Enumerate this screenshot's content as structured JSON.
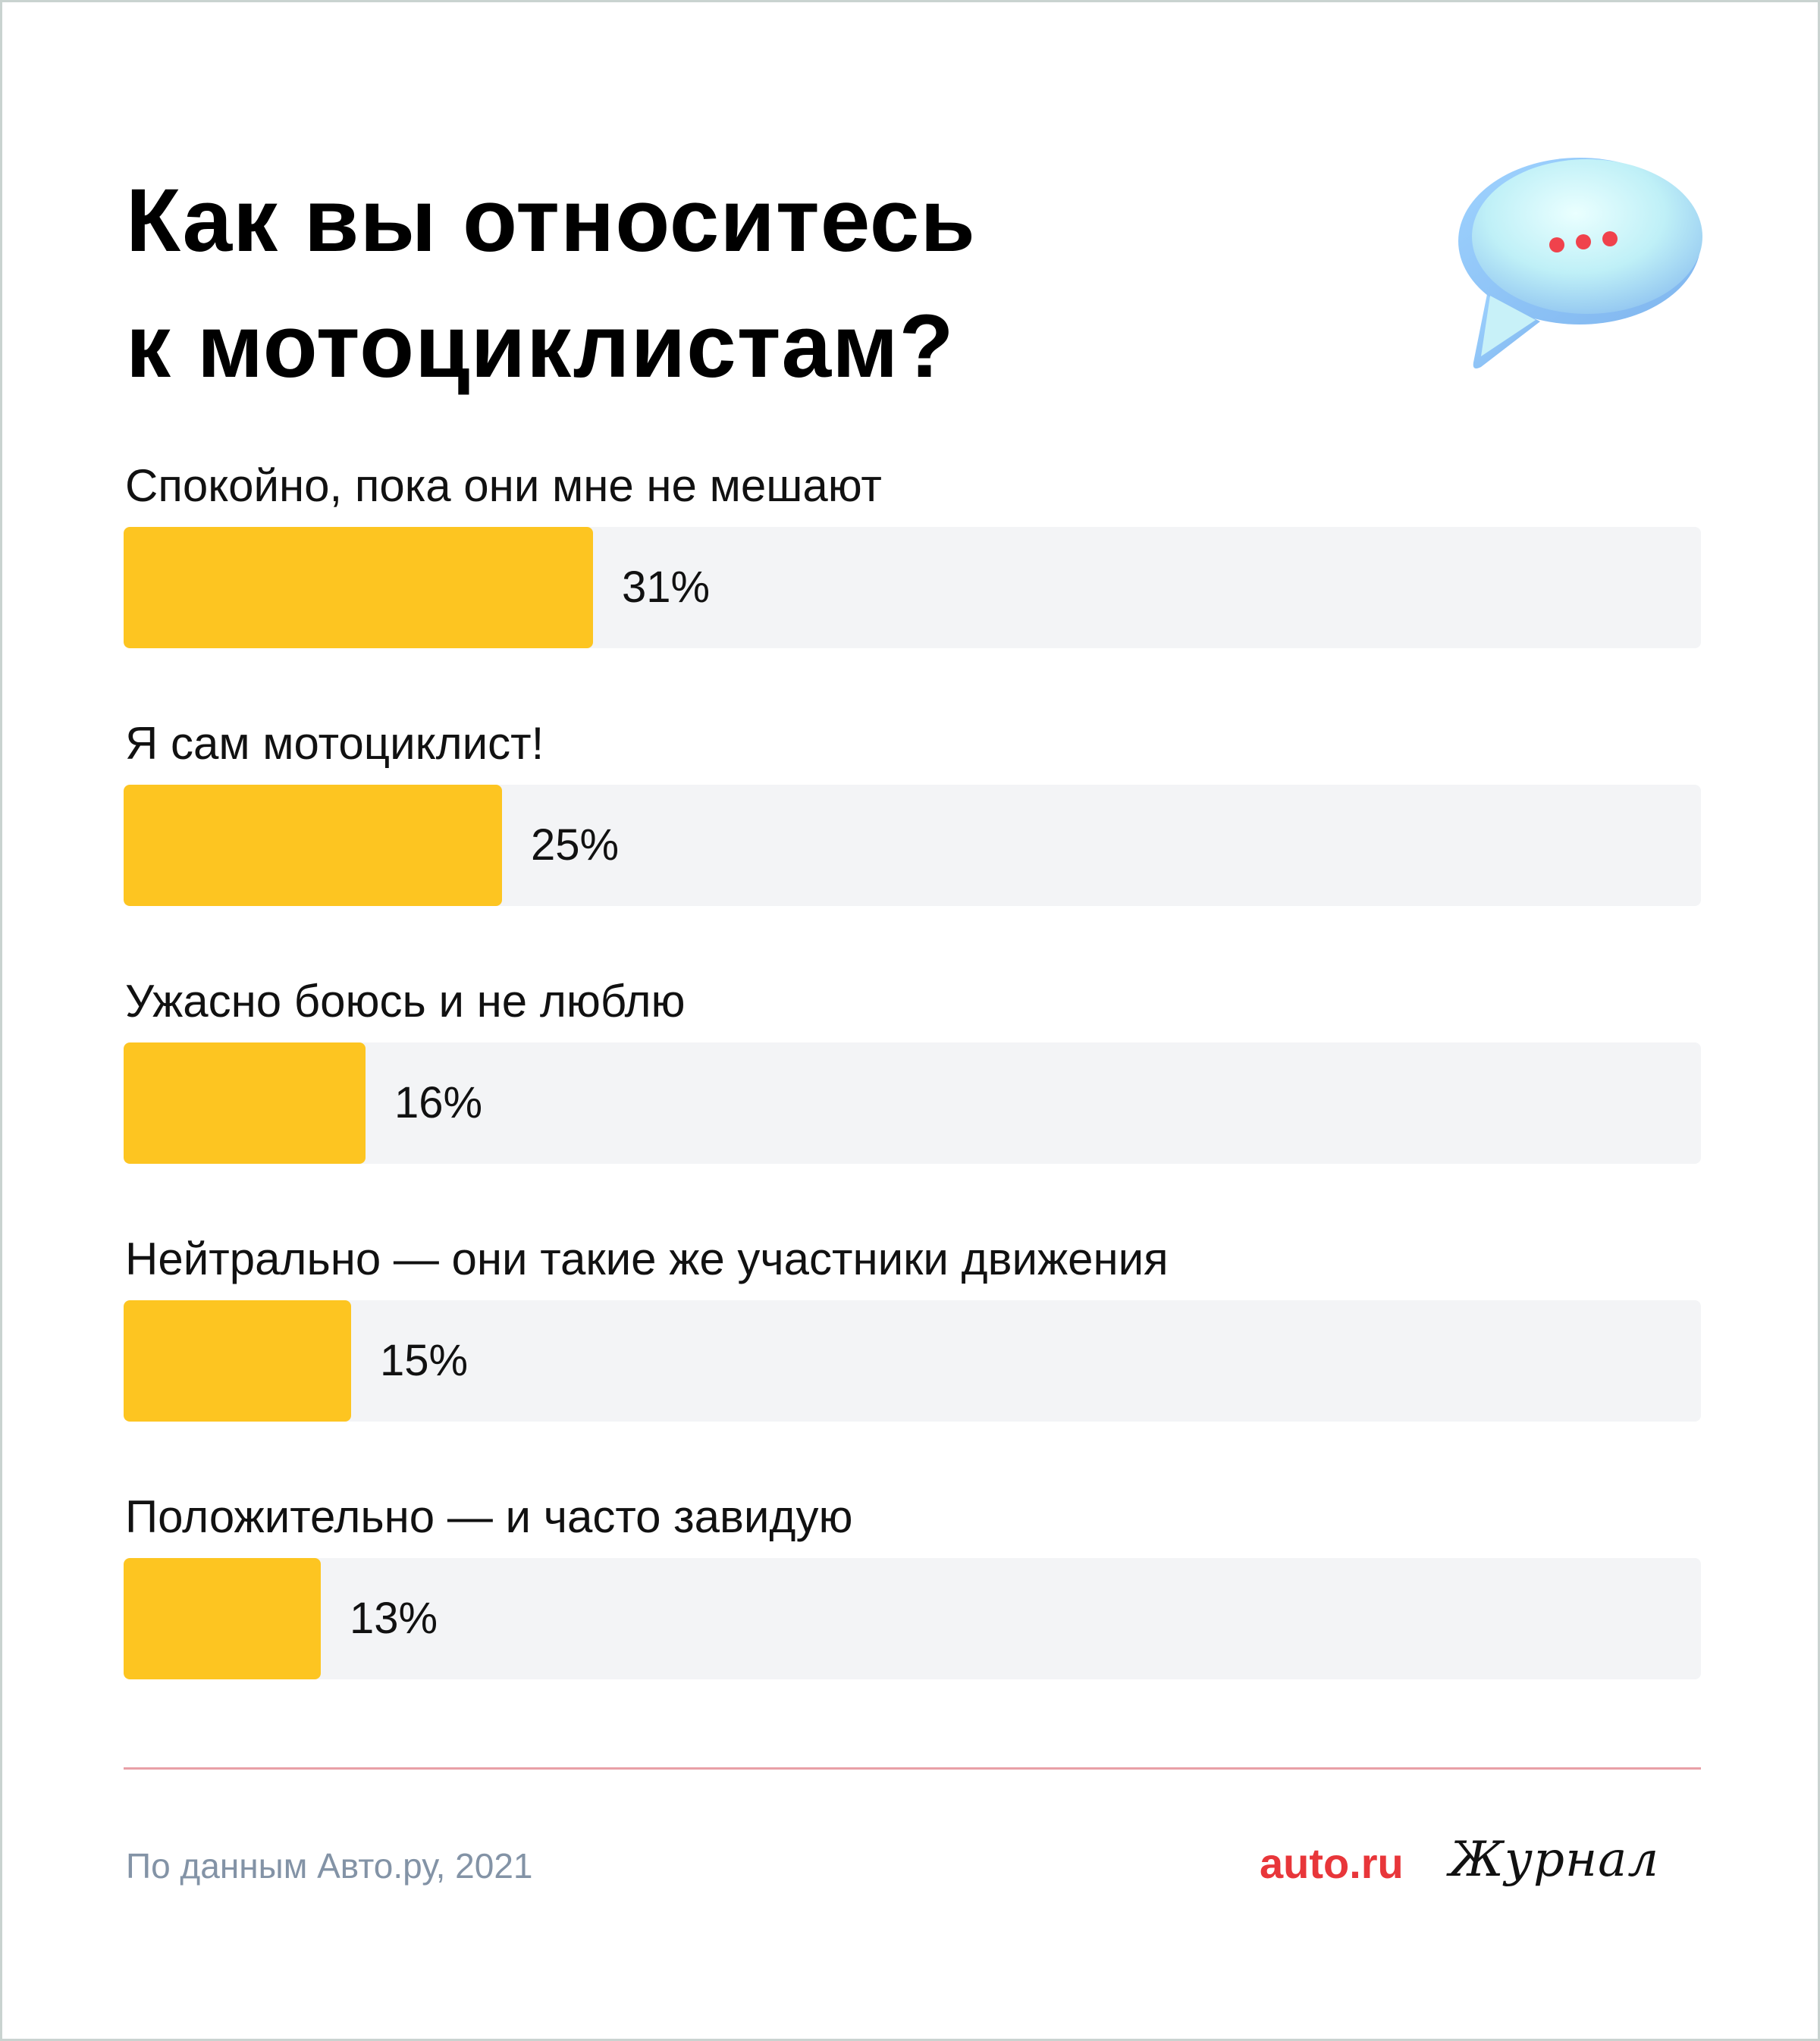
{
  "title": {
    "line1": "Как вы относитесь",
    "line2": "к мотоциклистам?"
  },
  "icon": "chat-bubble-icon",
  "colors": {
    "bar": "#fdc521",
    "track": "#f3f4f6",
    "divider": "#e8a0a7",
    "brand": "#e8363a",
    "source": "#8393a6"
  },
  "chart_data": {
    "type": "bar",
    "orientation": "horizontal",
    "title": "Как вы относитесь к мотоциклистам?",
    "xlim": [
      0,
      100
    ],
    "categories": [
      "Спокойно, пока они мне не мешают",
      "Я сам мотоциклист!",
      "Ужасно боюсь и не люблю",
      "Нейтрально — они такие же участники движения",
      "Положительно — и часто завидую"
    ],
    "values": [
      31,
      25,
      16,
      15,
      13
    ],
    "labels": [
      "31%",
      "25%",
      "16%",
      "15%",
      "13%"
    ],
    "grid": false,
    "legend": "none"
  },
  "footer": {
    "source": "По данным Авто.ру, 2021",
    "brand": "auto.ru",
    "brand_suffix": "Журнал"
  }
}
